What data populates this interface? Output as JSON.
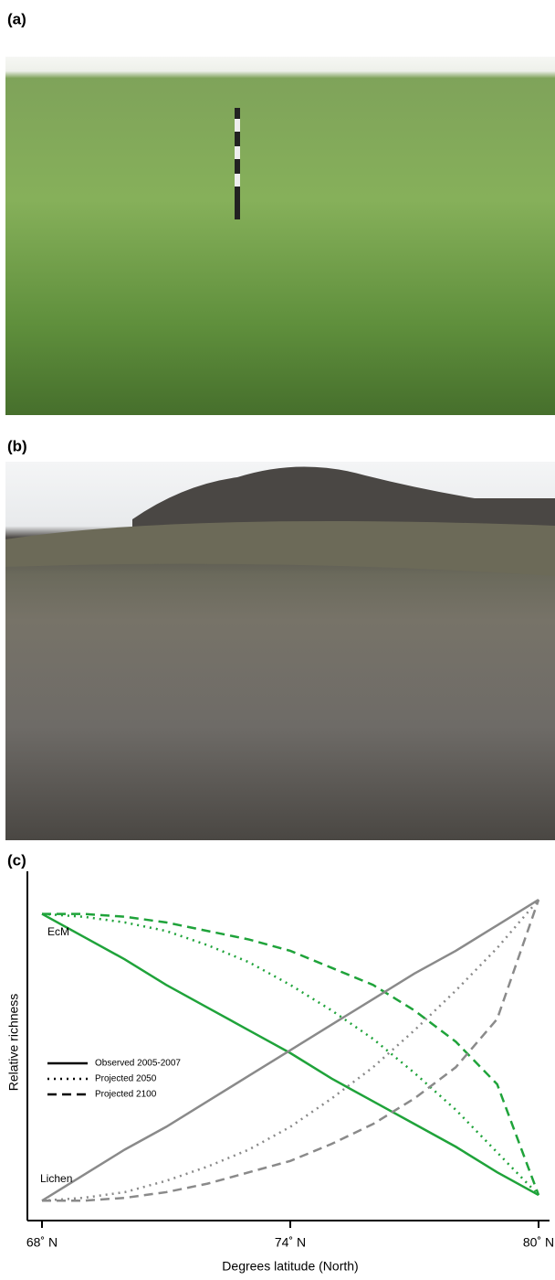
{
  "panels": {
    "a": "(a)",
    "b": "(b)",
    "c": "(c)"
  },
  "chart_data": {
    "type": "line",
    "xlabel": "Degrees latitude (North)",
    "ylabel": "Relative richness",
    "x": [
      68,
      69,
      70,
      71,
      72,
      73,
      74,
      75,
      76,
      77,
      78,
      79,
      80
    ],
    "xlim": [
      68,
      80
    ],
    "xticks": [
      {
        "value": 68,
        "label": "68˚ N"
      },
      {
        "value": 74,
        "label": "74˚ N"
      },
      {
        "value": 80,
        "label": "80˚ N"
      }
    ],
    "ylim": [
      -0.08,
      1.15
    ],
    "legend": [
      {
        "name": "Observed 2005-2007",
        "dash": "solid"
      },
      {
        "name": "Projected 2050",
        "dash": "dotted"
      },
      {
        "name": "Projected 2100",
        "dash": "dashed"
      }
    ],
    "series": [
      {
        "name": "EcM",
        "color": "#1fa33a",
        "values": [
          [
            1,
            0.92,
            0.84,
            0.75,
            0.67,
            0.59,
            0.51,
            0.42,
            0.34,
            0.26,
            0.18,
            0.09,
            0.01
          ],
          [
            1,
            0.99,
            0.97,
            0.94,
            0.89,
            0.83,
            0.75,
            0.66,
            0.56,
            0.44,
            0.31,
            0.16,
            0.01
          ],
          [
            1,
            1,
            0.99,
            0.97,
            0.94,
            0.91,
            0.87,
            0.81,
            0.75,
            0.66,
            0.55,
            0.4,
            0.01
          ]
        ]
      },
      {
        "name": "Lichen",
        "color": "#8a8a8a",
        "values": [
          [
            -0.01,
            0.08,
            0.17,
            0.25,
            0.34,
            0.43,
            0.52,
            0.61,
            0.7,
            0.79,
            0.87,
            0.96,
            1.05
          ],
          [
            -0.01,
            0,
            0.02,
            0.06,
            0.11,
            0.17,
            0.25,
            0.35,
            0.46,
            0.59,
            0.73,
            0.88,
            1.05
          ],
          [
            -0.01,
            -0.01,
            0,
            0.02,
            0.05,
            0.09,
            0.13,
            0.19,
            0.26,
            0.35,
            0.46,
            0.63,
            1.05
          ]
        ]
      }
    ]
  }
}
